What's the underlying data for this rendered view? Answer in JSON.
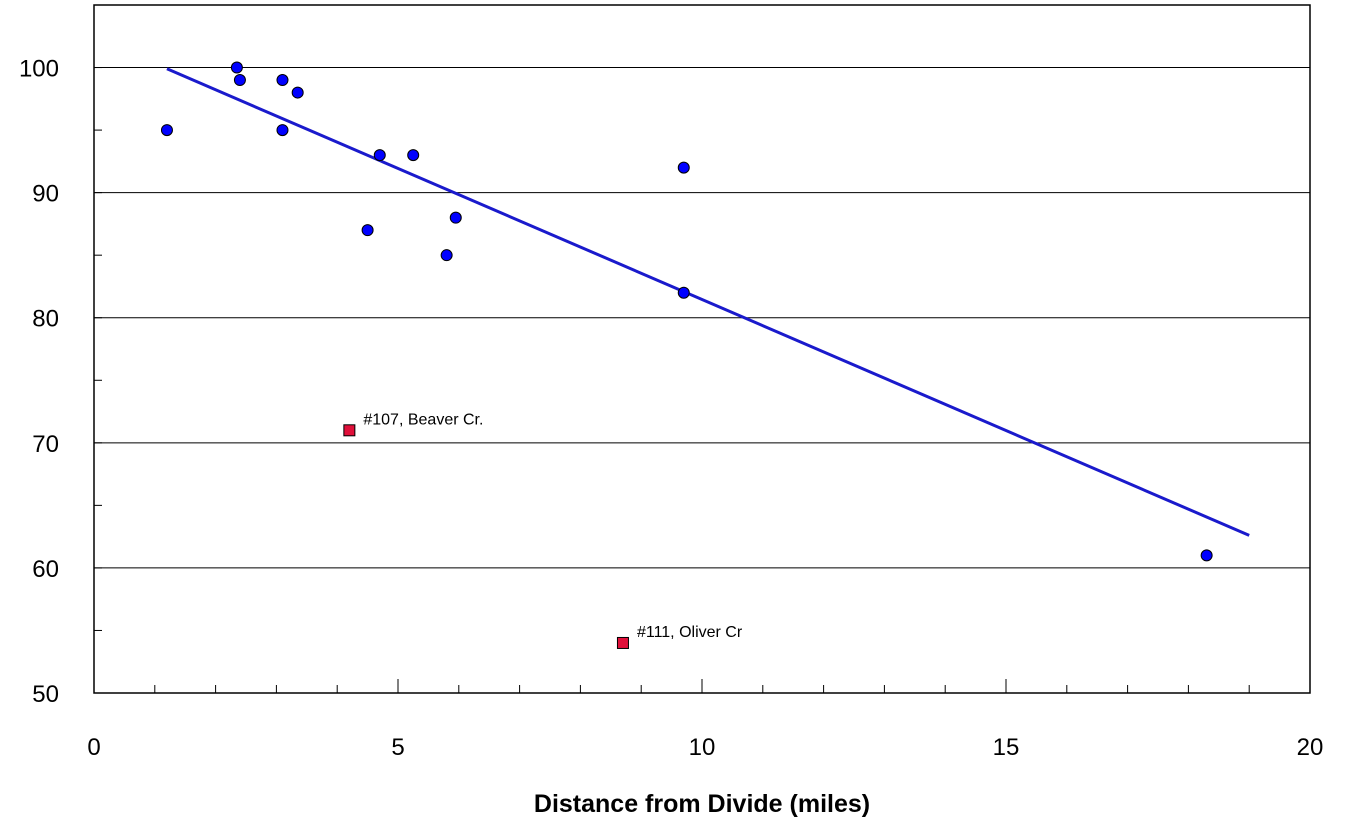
{
  "chart_data": {
    "type": "scatter",
    "title": "",
    "xlabel": "Distance from Divide (miles)",
    "ylabel": "",
    "xlim": [
      0,
      20
    ],
    "ylim": [
      50,
      105
    ],
    "x_ticks": [
      0,
      5,
      10,
      15,
      20
    ],
    "y_ticks": [
      50,
      60,
      70,
      80,
      90,
      100
    ],
    "grid": "horizontal",
    "legend": "none",
    "colors": {
      "points": "#0000ff",
      "trend": "#1a1acc",
      "outliers": "#e0103a"
    },
    "series": [
      {
        "points": [
          {
            "x": 1.2,
            "y": 95
          },
          {
            "x": 2.35,
            "y": 100
          },
          {
            "x": 2.4,
            "y": 99
          },
          {
            "x": 3.1,
            "y": 99
          },
          {
            "x": 3.35,
            "y": 98
          },
          {
            "x": 3.1,
            "y": 95
          },
          {
            "x": 4.7,
            "y": 93
          },
          {
            "x": 5.25,
            "y": 93
          },
          {
            "x": 4.5,
            "y": 87
          },
          {
            "x": 5.95,
            "y": 88
          },
          {
            "x": 5.8,
            "y": 85
          },
          {
            "x": 9.7,
            "y": 92
          },
          {
            "x": 9.7,
            "y": 82
          },
          {
            "x": 18.3,
            "y": 61
          }
        ]
      },
      {
        "points": [
          {
            "x": 4.2,
            "y": 71,
            "label": "#107, Beaver Cr."
          },
          {
            "x": 8.7,
            "y": 54,
            "label": "#111, Oliver Cr"
          }
        ]
      }
    ],
    "trendline": {
      "x": [
        1.2,
        19
      ],
      "y": [
        99.9,
        62.6
      ]
    }
  }
}
